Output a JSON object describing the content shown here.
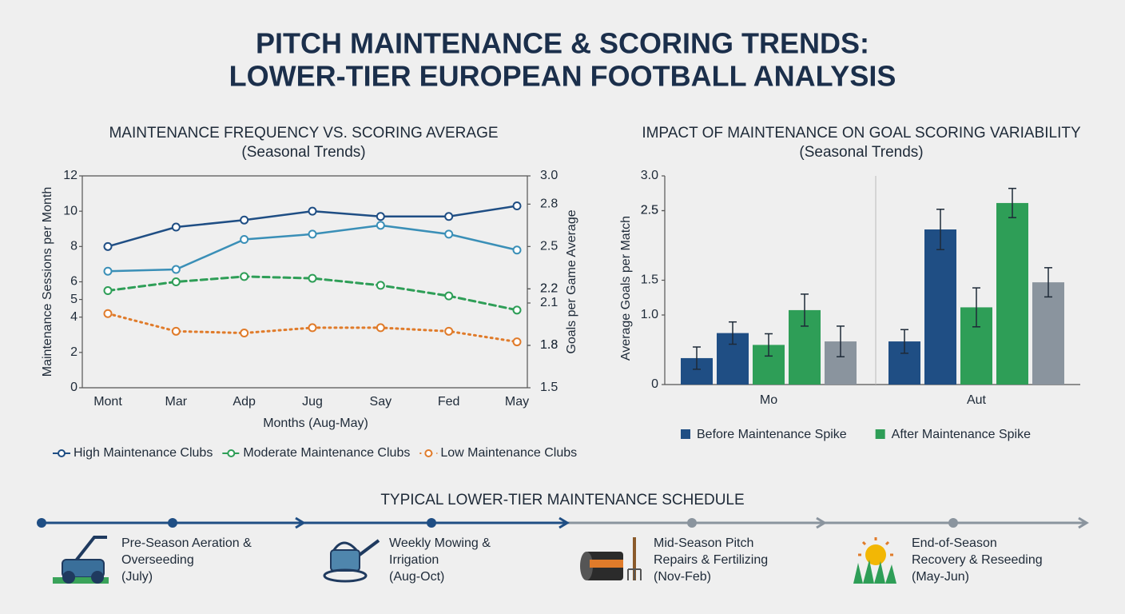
{
  "title": [
    "PITCH MAINTENANCE & SCORING TRENDS:",
    "LOWER-TIER EUROPEAN FOOTBALL ANALYSIS"
  ],
  "chart_data": [
    {
      "type": "line",
      "title": "MAINTENANCE FREQUENCY VS. SCORING AVERAGE",
      "subtitle": "(Seasonal Trends)",
      "x_label": "Months (Aug-May)",
      "y_label": "Maintenance Sessions per Month",
      "y2_label": "Goals per Game Average",
      "categories": [
        "Mont",
        "Mar",
        "Adp",
        "Jug",
        "Say",
        "Fed",
        "May"
      ],
      "ylim": [
        0,
        12
      ],
      "yticks": [
        12,
        10,
        8,
        6,
        5,
        4,
        2,
        0
      ],
      "y2lim": [
        1.5,
        3.0
      ],
      "y2ticks": [
        {
          "value": 3,
          "label": "3.0"
        },
        2.8,
        2.1,
        2.2,
        2.2,
        2.5,
        1.8,
        1.8,
        1.5
      ],
      "grid": false,
      "series": [
        {
          "name": "High Maintenance Clubs",
          "color": "#1f4e84",
          "dash": "solid",
          "values": [
            8.0,
            9.1,
            9.5,
            10.0,
            9.7,
            9.7,
            10.3
          ]
        },
        {
          "name": null,
          "color": "#3a8fb7",
          "dash": "solid",
          "values": [
            6.6,
            6.7,
            8.4,
            8.7,
            9.2,
            8.7,
            7.8
          ]
        },
        {
          "name": "Moderate Maintenance Clubs",
          "color": "#2e9e57",
          "dash": "dashed",
          "values": [
            5.5,
            6.0,
            6.3,
            6.2,
            5.8,
            5.2,
            4.4
          ]
        },
        {
          "name": "Low Maintenance Clubs",
          "color": "#e07b2a",
          "dash": "dotted",
          "values": [
            4.2,
            3.2,
            3.1,
            3.4,
            3.4,
            3.2,
            2.6
          ]
        }
      ]
    },
    {
      "type": "bar",
      "title": "IMPACT OF MAINTENANCE ON GOAL SCORING VARIABILITY",
      "subtitle": "(Seasonal Trends)",
      "y_label": "Average Goals per Match",
      "categories": [
        "Mo",
        "Aut"
      ],
      "ylim": [
        0,
        3.0
      ],
      "yticks": [
        {
          "value": 3,
          "label": "3.0"
        },
        2.5,
        2.5,
        {
          "value": 1,
          "label": "1.0"
        },
        1.5,
        0
      ],
      "grid": false,
      "series": [
        {
          "name": "Before Maintenance Spike",
          "color": "#1f4e84",
          "values": [
            0.38,
            0.62
          ],
          "errors": [
            0.16,
            0.17
          ]
        },
        {
          "name": null,
          "color": "#1f4e84",
          "values": [
            0.74,
            2.23
          ],
          "errors": [
            0.16,
            0.29
          ]
        },
        {
          "name": "After Maintenance Spike",
          "color": "#2e9e57",
          "values": [
            0.57,
            1.11
          ],
          "errors": [
            0.16,
            0.28
          ]
        },
        {
          "name": null,
          "color": "#2e9e57",
          "values": [
            1.07,
            2.61
          ],
          "errors": [
            0.23,
            0.21
          ]
        },
        {
          "name": null,
          "color": "#8a949e",
          "values": [
            0.62,
            1.47
          ],
          "errors": [
            0.22,
            0.21
          ]
        }
      ]
    }
  ],
  "timeline": {
    "title": "TYPICAL LOWER-TIER MAINTENANCE SCHEDULE",
    "items": [
      {
        "lines": [
          "Pre-Season Aeration &",
          "Overseeding",
          "(July)"
        ]
      },
      {
        "lines": [
          "Weekly Mowing &",
          "Irrigation",
          "(Aug-Oct)"
        ]
      },
      {
        "lines": [
          "Mid-Season Pitch",
          "Repairs & Fertilizing",
          "(Nov-Feb)"
        ]
      },
      {
        "lines": [
          "End-of-Season",
          "Recovery & Reseeding",
          "(May-Jun)"
        ]
      }
    ]
  }
}
